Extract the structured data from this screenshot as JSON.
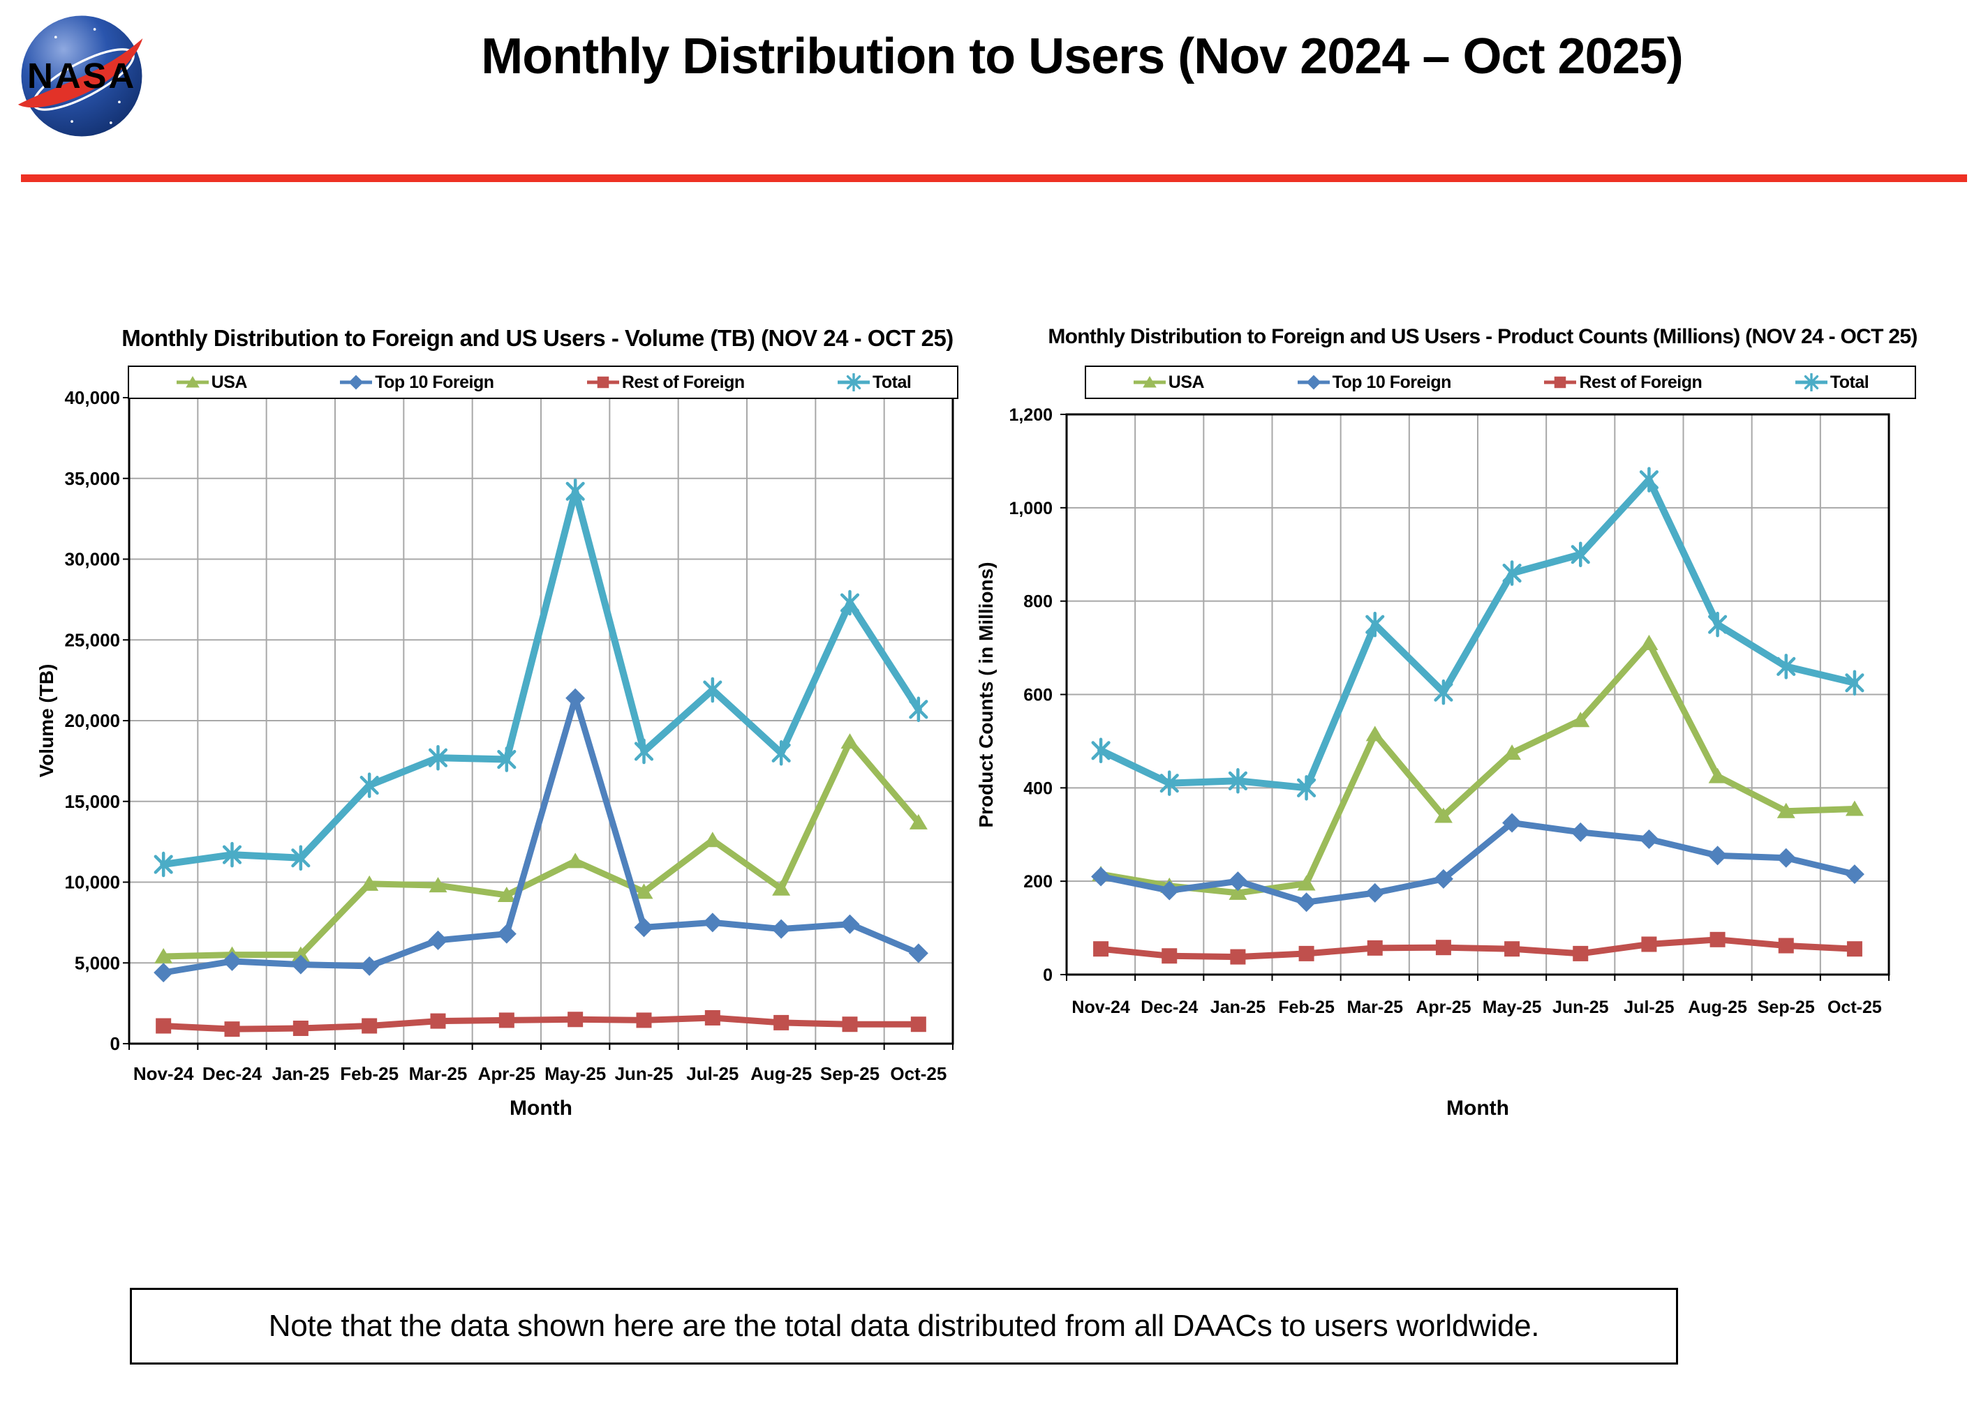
{
  "header": {
    "title": "Monthly Distribution to Users (Nov 2024 – Oct 2025)"
  },
  "logo": {
    "text": "NASA"
  },
  "note": {
    "text": "Note that the data shown here are the total data distributed from all DAACs to users worldwide."
  },
  "colors": {
    "usa": "#9BBB59",
    "top10": "#4F81BD",
    "rest": "#C0504D",
    "total": "#4BACC6",
    "grid": "#A8A8A8",
    "frame": "#000000",
    "rule": "#EE3124",
    "logo_blue": "#1B3E94",
    "logo_red": "#E23228"
  },
  "chart_data": [
    {
      "type": "line",
      "title": "Monthly Distribution to Foreign and US Users - Volume  (TB) (NOV 24 - OCT 25)",
      "xlabel": "Month",
      "ylabel": "Volume (TB)",
      "ylim": [
        0,
        40000
      ],
      "ystep": 5000,
      "grid": true,
      "legend_position": "top",
      "categories": [
        "Nov-24",
        "Dec-24",
        "Jan-25",
        "Feb-25",
        "Mar-25",
        "Apr-25",
        "May-25",
        "Jun-25",
        "Jul-25",
        "Aug-25",
        "Sep-25",
        "Oct-25"
      ],
      "series": [
        {
          "name": "USA",
          "color_key": "usa",
          "marker": "triangle",
          "values": [
            5400,
            5500,
            5500,
            9900,
            9800,
            9200,
            11300,
            9400,
            12600,
            9600,
            18700,
            13700
          ]
        },
        {
          "name": "Top 10 Foreign",
          "color_key": "top10",
          "marker": "diamond",
          "values": [
            4400,
            5100,
            4900,
            4800,
            6400,
            6800,
            21400,
            7200,
            7500,
            7100,
            7400,
            5600
          ]
        },
        {
          "name": "Rest of Foreign",
          "color_key": "rest",
          "marker": "square",
          "values": [
            1100,
            900,
            950,
            1100,
            1400,
            1450,
            1500,
            1450,
            1600,
            1300,
            1200,
            1200
          ]
        },
        {
          "name": "Total",
          "color_key": "total",
          "marker": "asterisk",
          "values": [
            11100,
            11700,
            11500,
            16000,
            17700,
            17600,
            34200,
            18100,
            21900,
            18000,
            27300,
            20700
          ]
        }
      ]
    },
    {
      "type": "line",
      "title": "Monthly Distribution to Foreign and US Users - Product Counts (Millions) (NOV 24 - OCT 25)",
      "xlabel": "Month",
      "ylabel": "Product Counts ( in Millions)",
      "ylim": [
        0,
        1200
      ],
      "ystep": 200,
      "grid": true,
      "legend_position": "top",
      "categories": [
        "Nov-24",
        "Dec-24",
        "Jan-25",
        "Feb-25",
        "Mar-25",
        "Apr-25",
        "May-25",
        "Jun-25",
        "Jul-25",
        "Aug-25",
        "Sep-25",
        "Oct-25"
      ],
      "series": [
        {
          "name": "USA",
          "color_key": "usa",
          "marker": "triangle",
          "values": [
            215,
            190,
            175,
            195,
            515,
            340,
            475,
            545,
            710,
            425,
            350,
            355
          ]
        },
        {
          "name": "Top 10 Foreign",
          "color_key": "top10",
          "marker": "diamond",
          "values": [
            210,
            180,
            200,
            155,
            175,
            205,
            325,
            305,
            290,
            255,
            250,
            215
          ]
        },
        {
          "name": "Rest of Foreign",
          "color_key": "rest",
          "marker": "square",
          "values": [
            55,
            40,
            38,
            45,
            57,
            58,
            55,
            45,
            65,
            75,
            62,
            55
          ]
        },
        {
          "name": "Total",
          "color_key": "total",
          "marker": "asterisk",
          "values": [
            480,
            410,
            415,
            400,
            750,
            605,
            860,
            900,
            1060,
            750,
            660,
            625
          ]
        }
      ]
    }
  ]
}
